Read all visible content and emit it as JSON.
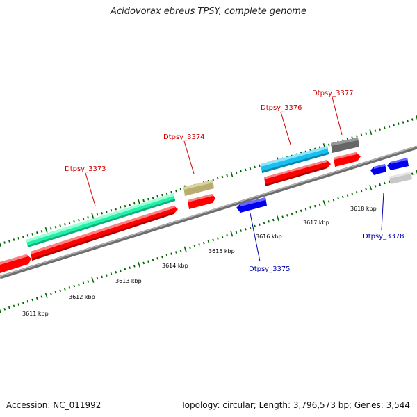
{
  "title": "Acidovorax ebreus TPSY, complete genome",
  "footer": {
    "accession": "Accession: NC_011992",
    "summary": "Topology: circular; Length: 3,796,573 bp; Genes: 3,544"
  },
  "ticks": [
    "3611 kbp",
    "3612 kbp",
    "3613 kbp",
    "3614 kbp",
    "3615 kbp",
    "3616 kbp",
    "3617 kbp",
    "3618 kbp"
  ],
  "gene_labels": [
    {
      "text": "Dtpsy_3373",
      "color": "#cc0000"
    },
    {
      "text": "Dtpsy_3374",
      "color": "#cc0000"
    },
    {
      "text": "Dtpsy_3376",
      "color": "#cc0000"
    },
    {
      "text": "Dtpsy_3377",
      "color": "#cc0000"
    },
    {
      "text": "Dtpsy_3375",
      "color": "#0000aa"
    },
    {
      "text": "Dtpsy_3378",
      "color": "#0000aa"
    }
  ],
  "colors": {
    "tick_marks": "#006600",
    "cds_forward": "#ff0000",
    "cds_reverse": "#0000ee",
    "backbone": "#888888",
    "feature_green": "#22f0a8",
    "feature_cyan": "#18c0f0",
    "feature_khaki": "#b8ad6e",
    "feature_darkgray": "#666666",
    "feature_lightgray": "#c8c8c8"
  }
}
